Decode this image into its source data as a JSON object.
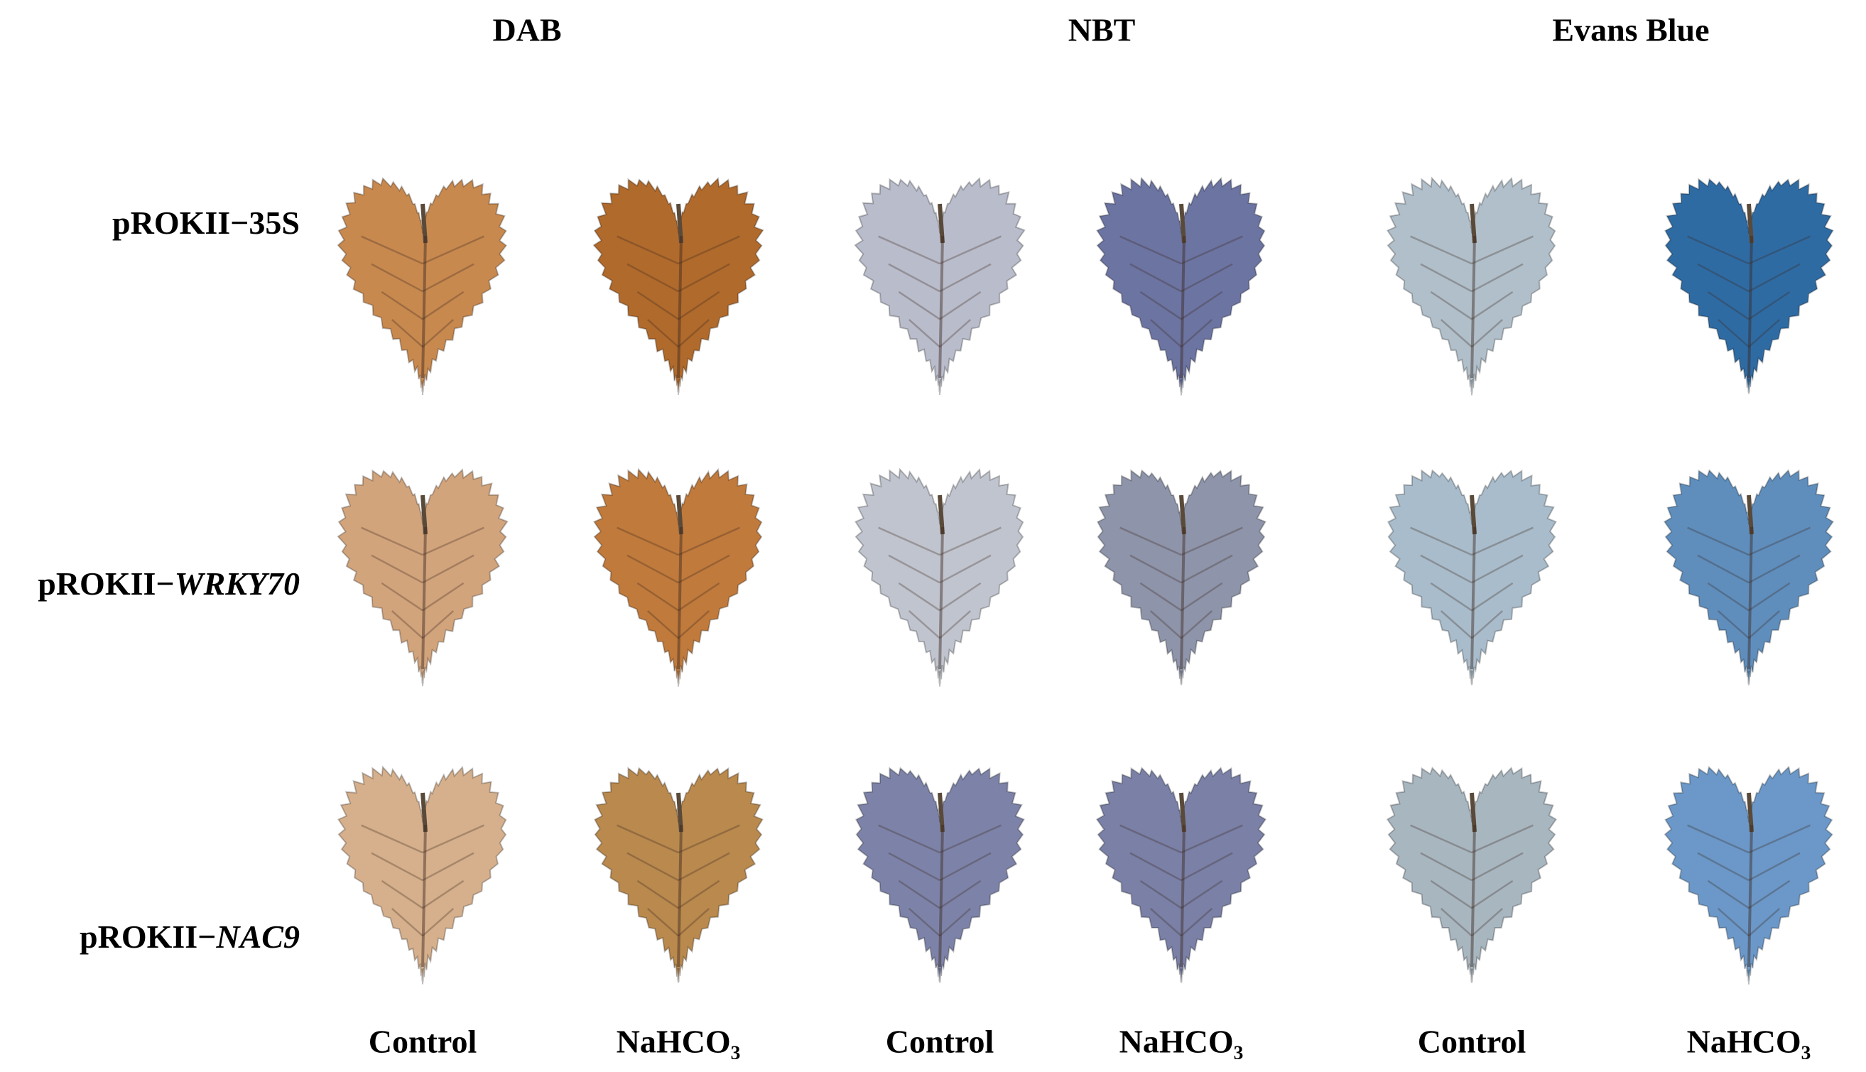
{
  "stains": [
    "DAB",
    "NBT",
    "Evans Blue"
  ],
  "rows": [
    {
      "prefix": "pROKII−",
      "name": "35S",
      "italic": false
    },
    {
      "prefix": "pROKII−",
      "name": "WRKY70",
      "italic": true
    },
    {
      "prefix": "pROKII−",
      "name": "NAC9",
      "italic": true
    }
  ],
  "treatments": [
    "Control",
    "NaHCO₃"
  ]
}
